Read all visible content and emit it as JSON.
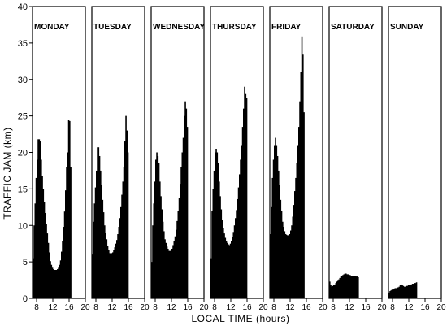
{
  "chart_data": {
    "type": "bar",
    "xlabel": "LOCAL TIME (hours)",
    "ylabel": "TRAFFIC JAM (km)",
    "ylim": [
      0,
      40
    ],
    "yticks": [
      0,
      5,
      10,
      15,
      20,
      25,
      30,
      35,
      40
    ],
    "xlim": [
      7,
      20
    ],
    "xticks": [
      8,
      12,
      16,
      20
    ],
    "bin_width_hours": 0.25,
    "panels": [
      {
        "name": "MONDAY",
        "x_start": 7,
        "values": [
          5.5,
          10,
          13,
          16.5,
          19,
          21.8,
          21.8,
          21.5,
          19,
          16.8,
          15,
          13.2,
          11.7,
          10.2,
          8.9,
          7.6,
          6.3,
          5.1,
          4.6,
          4.2,
          4,
          3.9,
          3.9,
          3.9,
          4,
          4.2,
          4.6,
          5.2,
          6.4,
          7.8,
          9.8,
          11.9,
          14.8,
          18,
          20,
          24.5,
          24.3,
          18
        ]
      },
      {
        "name": "TUESDAY",
        "x_start": 7,
        "values": [
          6,
          10.5,
          13,
          15.2,
          17.5,
          20.7,
          20.7,
          19.5,
          17.5,
          15.5,
          13.5,
          11.8,
          10,
          9,
          8.1,
          7.2,
          6.6,
          6.2,
          6.1,
          6.2,
          6.3,
          6.6,
          7,
          7.5,
          8,
          8.8,
          9.8,
          11,
          12.5,
          14.2,
          16,
          18,
          21.5,
          25,
          23,
          20
        ]
      },
      {
        "name": "WEDNESDAY",
        "x_start": 7,
        "values": [
          5,
          10,
          13,
          16,
          19,
          20,
          19.5,
          18.5,
          16,
          14,
          12.2,
          10.5,
          9.2,
          8.1,
          7.6,
          7.1,
          6.8,
          6.5,
          6.5,
          6.5,
          6.8,
          7.3,
          7.8,
          8.5,
          9.4,
          10.6,
          12,
          13.8,
          15.7,
          18,
          20,
          22,
          25,
          27,
          26,
          23.5
        ]
      },
      {
        "name": "THURSDAY",
        "x_start": 7,
        "values": [
          5.5,
          12,
          15,
          17.5,
          20,
          20.5,
          20,
          18.5,
          16,
          14,
          12.2,
          10.8,
          9.6,
          8.9,
          8.3,
          7.9,
          7.6,
          7.4,
          7.3,
          7.5,
          7.8,
          8.4,
          9.1,
          10,
          11,
          12.1,
          13.6,
          15.2,
          17,
          19,
          21,
          23.5,
          26,
          29,
          28,
          27.5
        ]
      },
      {
        "name": "FRIDAY",
        "x_start": 7,
        "values": [
          8.8,
          12.5,
          16.5,
          19,
          21,
          22,
          21,
          19.5,
          17.5,
          15.5,
          13.5,
          12,
          10.5,
          9.8,
          9.2,
          8.8,
          8.7,
          8.6,
          8.7,
          8.8,
          9.3,
          10,
          11.2,
          12.8,
          14.7,
          16.5,
          18.5,
          21,
          23.5,
          27,
          31,
          35.9,
          33.4,
          25.5
        ]
      },
      {
        "name": "SATURDAY",
        "x_start": 7,
        "values": [
          2.3,
          1.8,
          1.6,
          1.7,
          1.8,
          1.9,
          2.1,
          2.3,
          2.4,
          2.6,
          2.8,
          3,
          3.1,
          3.2,
          3.3,
          3.4,
          3.4,
          3.3,
          3.3,
          3.2,
          3.2,
          3.1,
          3.1,
          3.1,
          3.1,
          3.1,
          3,
          3,
          2.9
        ]
      },
      {
        "name": "SUNDAY",
        "x_start": 7,
        "values": [
          0.8,
          1,
          1.1,
          1.2,
          1.2,
          1.3,
          1.4,
          1.4,
          1.5,
          1.5,
          1.6,
          1.8,
          1.9,
          1.8,
          1.7,
          1.6,
          1.6,
          1.7,
          1.7,
          1.8,
          1.8,
          1.9,
          1.9,
          2,
          2,
          2.1,
          2.1,
          2.2
        ]
      }
    ]
  }
}
